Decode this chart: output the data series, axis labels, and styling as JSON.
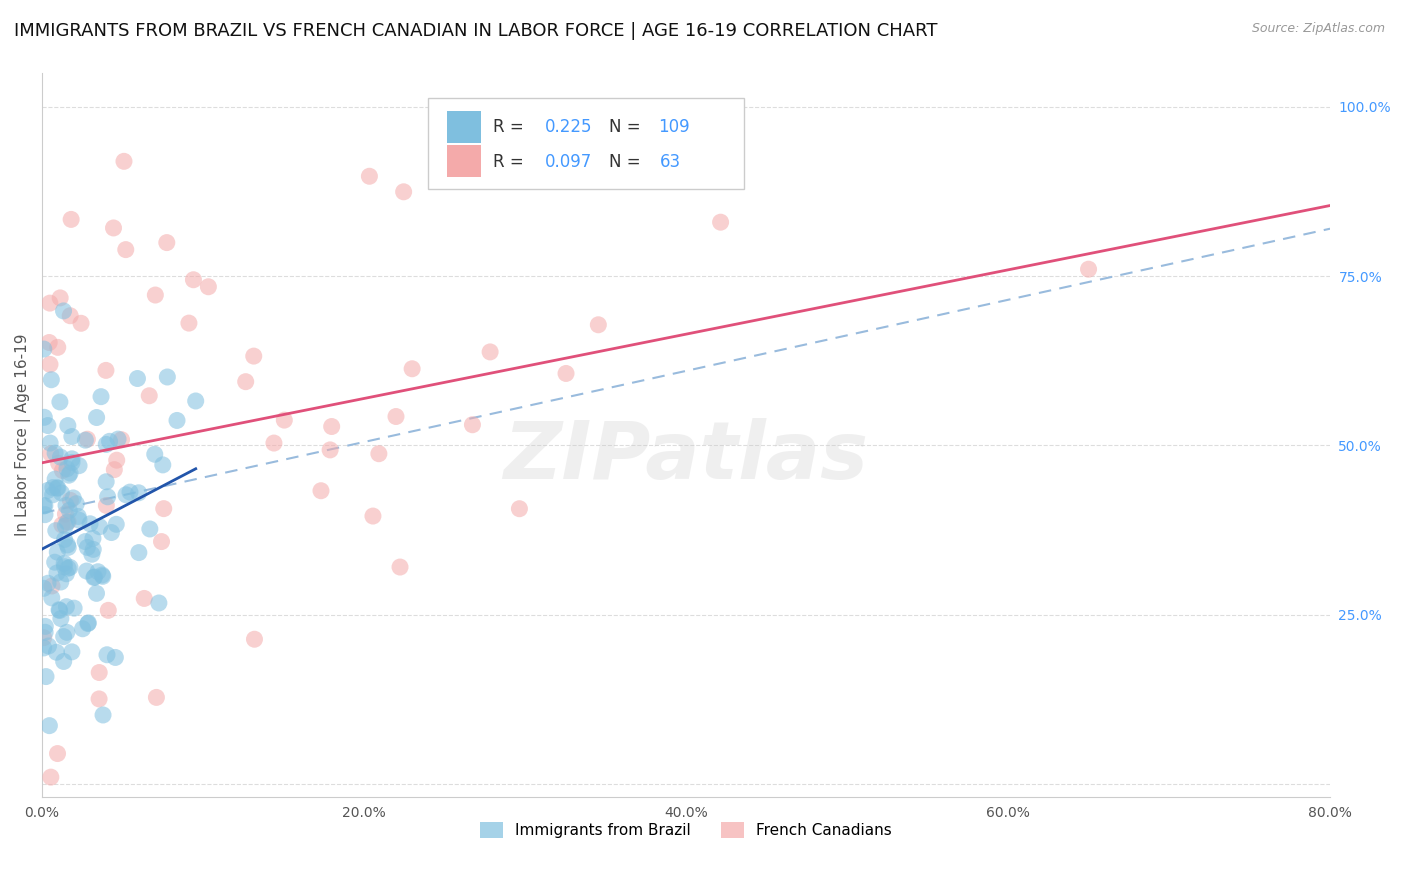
{
  "title": "IMMIGRANTS FROM BRAZIL VS FRENCH CANADIAN IN LABOR FORCE | AGE 16-19 CORRELATION CHART",
  "source": "Source: ZipAtlas.com",
  "ylabel": "In Labor Force | Age 16-19",
  "xlim": [
    0.0,
    0.8
  ],
  "ylim": [
    -0.02,
    1.05
  ],
  "xtick_labels": [
    "0.0%",
    "20.0%",
    "40.0%",
    "60.0%",
    "80.0%"
  ],
  "xtick_values": [
    0.0,
    0.2,
    0.4,
    0.6,
    0.8
  ],
  "ytick_labels": [
    "100.0%",
    "75.0%",
    "50.0%",
    "25.0%"
  ],
  "ytick_values": [
    1.0,
    0.75,
    0.5,
    0.25
  ],
  "series1_color": "#7fbfdf",
  "series1_R": 0.225,
  "series1_N": 109,
  "series1_name": "Immigrants from Brazil",
  "series2_color": "#f4aaaa",
  "series2_R": 0.097,
  "series2_N": 63,
  "series2_name": "French Canadians",
  "trend1_color": "#2255aa",
  "trend2_color": "#e0507a",
  "dash_color": "#99bbdd",
  "legend_val_color": "#4499ff",
  "legend_label_color": "#333333",
  "watermark": "ZIPatlas",
  "background_color": "#ffffff",
  "grid_color": "#dddddd",
  "title_fontsize": 13,
  "axis_label_fontsize": 11,
  "tick_color": "#4499ff"
}
